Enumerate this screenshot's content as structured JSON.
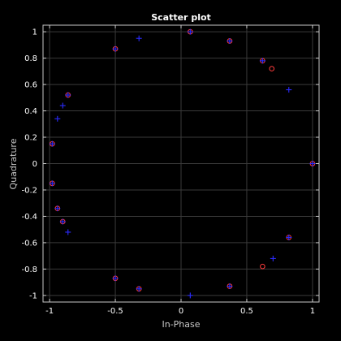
{
  "chart_data": {
    "type": "scatter",
    "title": "Scatter plot",
    "xlabel": "In-Phase",
    "ylabel": "Quadrature",
    "xlim": [
      -1.05,
      1.05
    ],
    "ylim": [
      -1.05,
      1.05
    ],
    "xticks": [
      -1,
      -0.5,
      0,
      0.5,
      1
    ],
    "xtick_labels": [
      "-1",
      "-0.5",
      "0",
      "0.5",
      "1"
    ],
    "yticks": [
      -1,
      -0.8,
      -0.6,
      -0.4,
      -0.2,
      0,
      0.2,
      0.4,
      0.6,
      0.8,
      1
    ],
    "ytick_labels": [
      "-1",
      "-0.8",
      "-0.6",
      "-0.4",
      "-0.2",
      "0",
      "0.2",
      "0.4",
      "0.6",
      "0.8",
      "1"
    ],
    "grid": true,
    "colors": {
      "background": "#000000",
      "grid": "#3a3a3a",
      "axis": "#c8c8c8",
      "series_received": "#ff3b3b",
      "series_reference": "#2b2bff"
    },
    "series": [
      {
        "marker": "circle",
        "color": "#ff3b3b",
        "points": [
          [
            0.07,
            1.0
          ],
          [
            0.37,
            0.93
          ],
          [
            0.62,
            0.78
          ],
          [
            0.69,
            0.72
          ],
          [
            1.0,
            0.0
          ],
          [
            0.82,
            -0.56
          ],
          [
            0.62,
            -0.78
          ],
          [
            0.37,
            -0.93
          ],
          [
            -0.32,
            -0.95
          ],
          [
            -0.5,
            -0.87
          ],
          [
            -0.9,
            -0.44
          ],
          [
            -0.94,
            -0.34
          ],
          [
            -0.98,
            -0.15
          ],
          [
            -0.98,
            0.15
          ],
          [
            -0.86,
            0.52
          ],
          [
            -0.5,
            0.87
          ]
        ]
      },
      {
        "marker": "plus",
        "color": "#2b2bff",
        "points": [
          [
            -0.32,
            0.95
          ],
          [
            0.07,
            1.0
          ],
          [
            0.37,
            0.93
          ],
          [
            0.62,
            0.78
          ],
          [
            0.82,
            0.56
          ],
          [
            1.0,
            0.0
          ],
          [
            0.82,
            -0.56
          ],
          [
            0.7,
            -0.72
          ],
          [
            0.37,
            -0.93
          ],
          [
            0.07,
            -1.0
          ],
          [
            -0.32,
            -0.95
          ],
          [
            -0.5,
            -0.87
          ],
          [
            -0.86,
            -0.52
          ],
          [
            -0.9,
            -0.44
          ],
          [
            -0.94,
            -0.34
          ],
          [
            -0.98,
            -0.15
          ],
          [
            -0.98,
            0.15
          ],
          [
            -0.94,
            0.34
          ],
          [
            -0.9,
            0.44
          ],
          [
            -0.86,
            0.52
          ],
          [
            -0.5,
            0.87
          ]
        ]
      }
    ]
  }
}
